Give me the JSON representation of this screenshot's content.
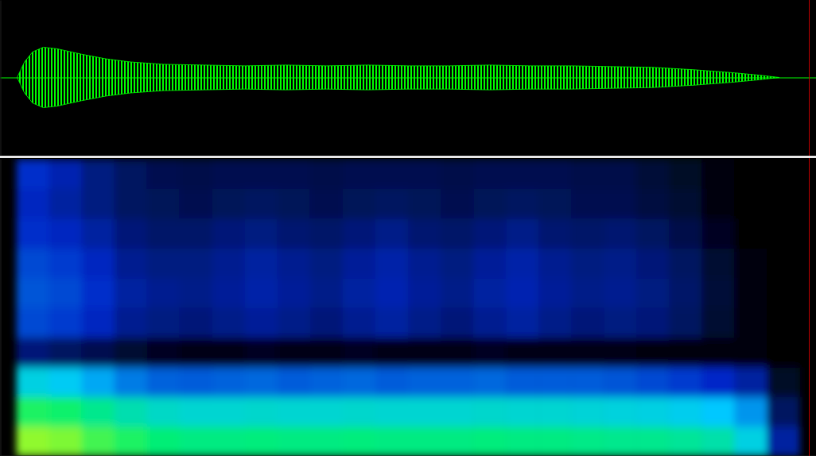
{
  "chart_data": [
    {
      "type": "area",
      "color": "#00ff00",
      "tick_labels": false,
      "xlim": [
        0,
        1
      ],
      "ylim": [
        -1,
        1
      ],
      "x": [
        0.021,
        0.03,
        0.04,
        0.053,
        0.07,
        0.1,
        0.13,
        0.16,
        0.2,
        0.25,
        0.3,
        0.35,
        0.4,
        0.45,
        0.5,
        0.55,
        0.6,
        0.65,
        0.7,
        0.75,
        0.8,
        0.85,
        0.9,
        0.93,
        0.955
      ],
      "values": [
        0,
        0.2,
        0.33,
        0.39,
        0.37,
        0.3,
        0.24,
        0.2,
        0.17,
        0.16,
        0.15,
        0.16,
        0.15,
        0.16,
        0.15,
        0.15,
        0.16,
        0.15,
        0.15,
        0.14,
        0.13,
        0.1,
        0.06,
        0.03,
        0
      ]
    },
    {
      "type": "heatmap",
      "tick_labels": false,
      "xlim": [
        0,
        1
      ],
      "ylim": [
        0,
        1
      ],
      "zlim": [
        0,
        1
      ],
      "x_bins": [
        0.02,
        0.06,
        0.1,
        0.14,
        0.18,
        0.22,
        0.26,
        0.3,
        0.34,
        0.38,
        0.42,
        0.46,
        0.5,
        0.54,
        0.58,
        0.62,
        0.66,
        0.7,
        0.74,
        0.78,
        0.82,
        0.86,
        0.9,
        0.94,
        0.98
      ],
      "y_bins": [
        0,
        0.1,
        0.2,
        0.3,
        0.4,
        0.5,
        0.6,
        0.7,
        0.8,
        0.9,
        1
      ],
      "cells": [
        [
          0.9,
          0.88,
          0.82,
          0.78,
          0.74,
          0.72,
          0.72,
          0.73,
          0.72,
          0.72,
          0.73,
          0.72,
          0.72,
          0.72,
          0.73,
          0.72,
          0.72,
          0.71,
          0.7,
          0.7,
          0.68,
          0.65,
          0.55,
          0.2
        ],
        [
          0.78,
          0.76,
          0.7,
          0.64,
          0.6,
          0.58,
          0.58,
          0.59,
          0.58,
          0.58,
          0.59,
          0.58,
          0.58,
          0.58,
          0.59,
          0.58,
          0.58,
          0.57,
          0.56,
          0.55,
          0.53,
          0.5,
          0.42,
          0.12
        ],
        [
          0.55,
          0.52,
          0.45,
          0.38,
          0.34,
          0.33,
          0.34,
          0.35,
          0.33,
          0.34,
          0.35,
          0.33,
          0.34,
          0.34,
          0.35,
          0.33,
          0.33,
          0.33,
          0.32,
          0.3,
          0.28,
          0.25,
          0.2,
          0.05
        ],
        [
          0.15,
          0.12,
          0.1,
          0.06,
          0.04,
          0.03,
          0.03,
          0.04,
          0.03,
          0.03,
          0.04,
          0.03,
          0.03,
          0.03,
          0.04,
          0.03,
          0.03,
          0.03,
          0.03,
          0.02,
          0.02,
          0.02,
          0.01,
          0
        ],
        [
          0.3,
          0.28,
          0.24,
          0.18,
          0.16,
          0.15,
          0.17,
          0.19,
          0.17,
          0.15,
          0.18,
          0.2,
          0.17,
          0.15,
          0.18,
          0.2,
          0.17,
          0.15,
          0.16,
          0.15,
          0.12,
          0.06,
          0.02,
          0
        ],
        [
          0.32,
          0.3,
          0.26,
          0.2,
          0.18,
          0.17,
          0.19,
          0.21,
          0.19,
          0.17,
          0.2,
          0.22,
          0.19,
          0.17,
          0.2,
          0.22,
          0.19,
          0.17,
          0.18,
          0.16,
          0.13,
          0.07,
          0.02,
          0
        ],
        [
          0.3,
          0.28,
          0.24,
          0.18,
          0.16,
          0.16,
          0.18,
          0.2,
          0.18,
          0.16,
          0.19,
          0.21,
          0.18,
          0.16,
          0.19,
          0.21,
          0.18,
          0.16,
          0.17,
          0.15,
          0.12,
          0.06,
          0.01,
          0
        ],
        [
          0.26,
          0.24,
          0.2,
          0.15,
          0.13,
          0.13,
          0.15,
          0.16,
          0.14,
          0.13,
          0.15,
          0.17,
          0.14,
          0.13,
          0.15,
          0.17,
          0.14,
          0.13,
          0.14,
          0.12,
          0.09,
          0.04,
          0,
          0
        ],
        [
          0.24,
          0.2,
          0.16,
          0.12,
          0.11,
          0.1,
          0.11,
          0.12,
          0.11,
          0.1,
          0.11,
          0.12,
          0.11,
          0.1,
          0.11,
          0.12,
          0.11,
          0.1,
          0.1,
          0.08,
          0.06,
          0.02,
          0,
          0
        ],
        [
          0.26,
          0.22,
          0.16,
          0.12,
          0.1,
          0.09,
          0.1,
          0.1,
          0.1,
          0.09,
          0.1,
          0.1,
          0.1,
          0.09,
          0.1,
          0.1,
          0.1,
          0.09,
          0.09,
          0.07,
          0.05,
          0.01,
          0,
          0
        ]
      ]
    }
  ]
}
